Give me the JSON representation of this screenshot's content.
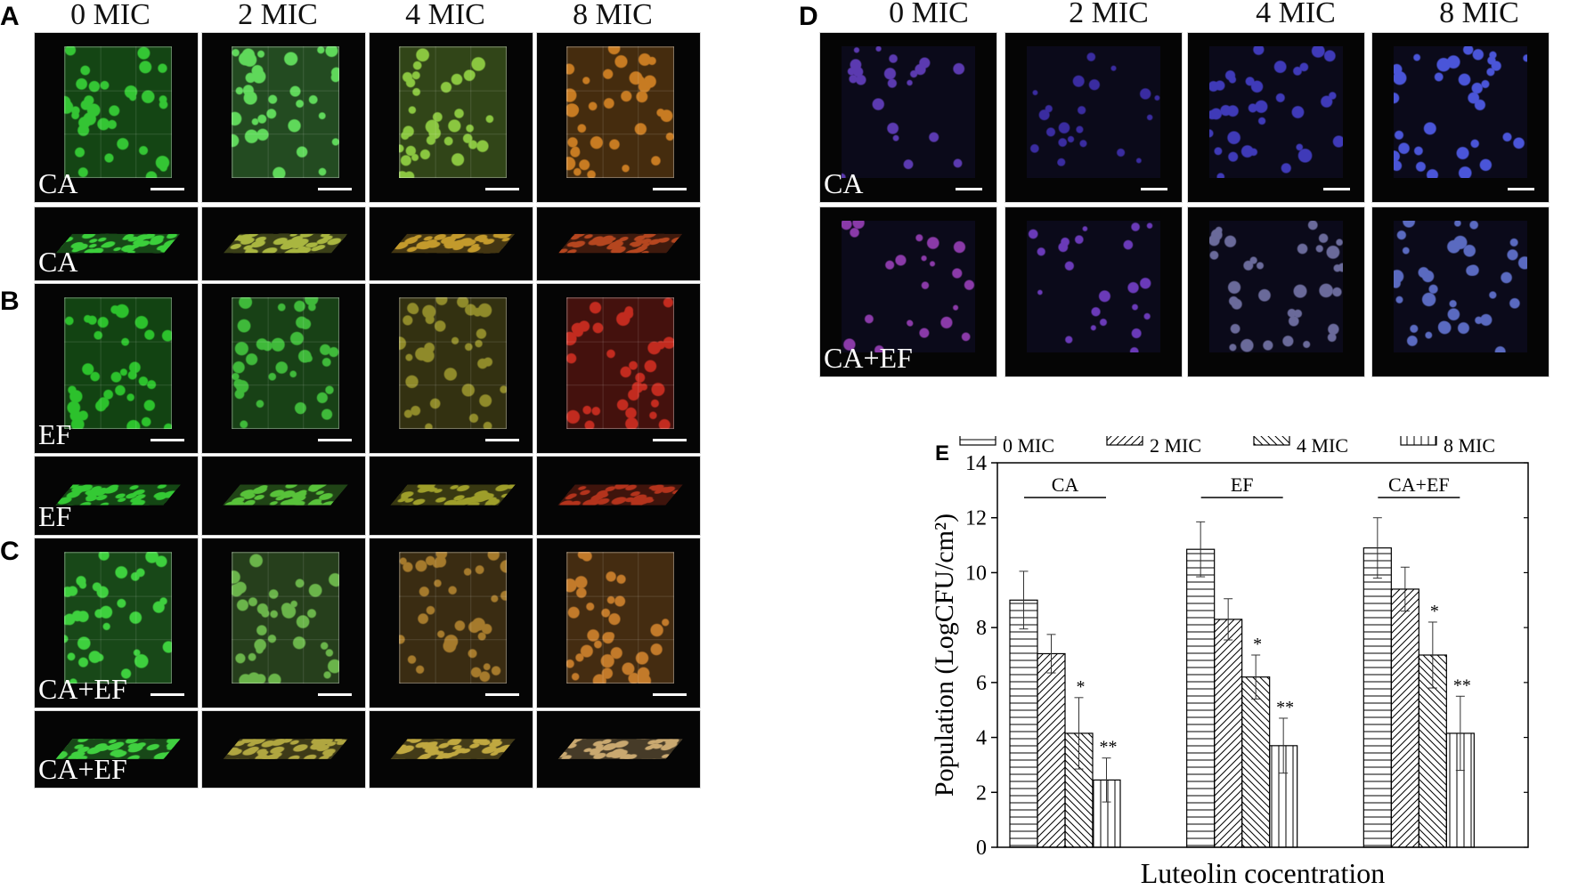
{
  "panels_left": {
    "letters": [
      "A",
      "B",
      "C"
    ],
    "column_headers": [
      "0 MIC",
      "2 MIC",
      "4 MIC",
      "8 MIC"
    ],
    "rows": [
      {
        "label": "CA",
        "kind": "top",
        "palette": [
          "#34c534",
          "#5fd85a",
          "#8ac640",
          "#c77b22"
        ]
      },
      {
        "label": "CA",
        "kind": "side",
        "palette": [
          "#3bcf3b",
          "#a9b640",
          "#c39a2c",
          "#b5461f"
        ]
      },
      {
        "label": "EF",
        "kind": "top",
        "palette": [
          "#2cc12c",
          "#3fb93a",
          "#8f8a2a",
          "#c22b1f"
        ]
      },
      {
        "label": "EF",
        "kind": "side",
        "palette": [
          "#34c934",
          "#58c23a",
          "#9e9e2a",
          "#b3331c"
        ]
      },
      {
        "label": "CA+EF",
        "kind": "top",
        "palette": [
          "#3ed03e",
          "#6ab44a",
          "#a57a2c",
          "#c27a2a"
        ]
      },
      {
        "label": "CA+EF",
        "kind": "side",
        "palette": [
          "#40d040",
          "#b0a640",
          "#c0a840",
          "#c9a870"
        ]
      }
    ]
  },
  "panel_d": {
    "letter": "D",
    "column_headers": [
      "0 MIC",
      "2 MIC",
      "4 MIC",
      "8 MIC"
    ],
    "rows": [
      {
        "label": "CA",
        "palette": [
          "#5b3ab0",
          "#3a2ca0",
          "#3f3ab8",
          "#4a55d8"
        ]
      },
      {
        "label": "CA+EF",
        "palette": [
          "#8a3aa8",
          "#6a3ab8",
          "#6a6a9a",
          "#5a6ac0"
        ]
      }
    ]
  },
  "chart_data": {
    "type": "bar",
    "panel_letter": "E",
    "xlabel": "Luteolin cocentration",
    "ylabel": "Population (LogCFU/cm²)",
    "ylim": [
      0,
      14
    ],
    "yticks": [
      0,
      2,
      4,
      6,
      8,
      10,
      12,
      14
    ],
    "groups": [
      "CA",
      "EF",
      "CA+EF"
    ],
    "series": [
      {
        "name": "0 MIC",
        "pattern": "horizontal",
        "values": [
          9.0,
          10.85,
          10.9
        ],
        "errors": [
          1.05,
          1.0,
          1.1
        ],
        "sig": [
          "",
          "",
          ""
        ]
      },
      {
        "name": "2 MIC",
        "pattern": "diag-right",
        "values": [
          7.05,
          8.3,
          9.4
        ],
        "errors": [
          0.7,
          0.75,
          0.8
        ],
        "sig": [
          "",
          "",
          ""
        ]
      },
      {
        "name": "4 MIC",
        "pattern": "diag-left",
        "values": [
          4.15,
          6.2,
          7.0
        ],
        "errors": [
          1.3,
          0.8,
          1.2
        ],
        "sig": [
          "*",
          "*",
          "*"
        ]
      },
      {
        "name": "8 MIC",
        "pattern": "vertical",
        "values": [
          2.45,
          3.7,
          4.15
        ],
        "errors": [
          0.8,
          1.0,
          1.35
        ],
        "sig": [
          "**",
          "**",
          "**"
        ]
      }
    ],
    "legend_position": "top"
  }
}
